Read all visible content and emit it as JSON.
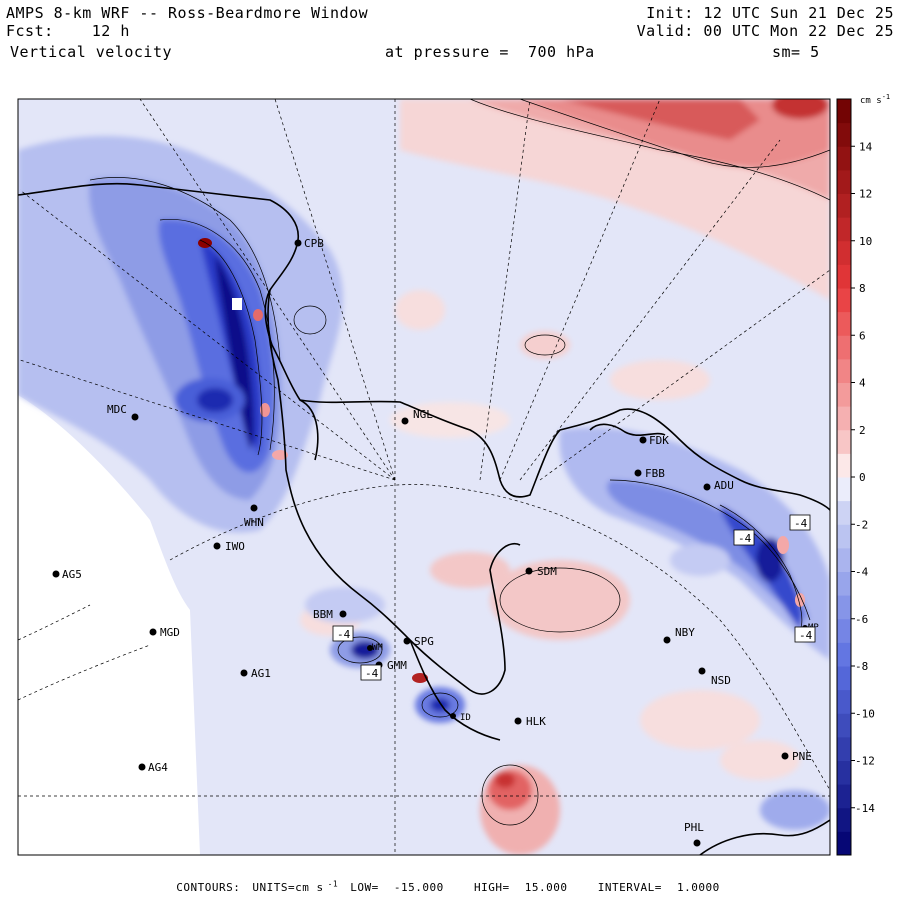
{
  "header": {
    "title": "AMPS 8-km WRF -- Ross-Beardmore Window",
    "forecast_label": "Fcst:",
    "forecast_hours": "12 h",
    "variable": "Vertical velocity",
    "init": "Init: 12 UTC Sun 21 Dec 25",
    "valid": "Valid: 00 UTC Mon 22 Dec 25",
    "pressure_label": "at pressure =",
    "pressure_value": "700 hPa",
    "smoothing": "sm= 5"
  },
  "colorbar": {
    "units_label": "cm s",
    "units_exponent": "-1",
    "tick_labels": [
      "14",
      "12",
      "10",
      "8",
      "6",
      "4",
      "2",
      "0",
      "-2",
      "-4",
      "-6",
      "-8",
      "-10",
      "-12",
      "-14"
    ],
    "colors": {
      "positive_strong": "#6b0000",
      "positive_mid": "#e8393b",
      "positive_weak": "#f9d1d1",
      "zero": "#ffffff",
      "negative_weak": "#d6dbf6",
      "negative_mid": "#5a6ee0",
      "negative_strong": "#00006e"
    }
  },
  "stations": [
    {
      "id": "CPB"
    },
    {
      "id": "NGL"
    },
    {
      "id": "MDC"
    },
    {
      "id": "FDK"
    },
    {
      "id": "FBB"
    },
    {
      "id": "ADU"
    },
    {
      "id": "WHN"
    },
    {
      "id": "IWO"
    },
    {
      "id": "AG5"
    },
    {
      "id": "SDM"
    },
    {
      "id": "BBM"
    },
    {
      "id": "MGD"
    },
    {
      "id": "NBY"
    },
    {
      "id": "SPG"
    },
    {
      "id": "AG1"
    },
    {
      "id": "GMM"
    },
    {
      "id": "NSD"
    },
    {
      "id": "HLK"
    },
    {
      "id": "AG4"
    },
    {
      "id": "PNE"
    },
    {
      "id": "PHL"
    },
    {
      "id": "WM"
    },
    {
      "id": "ID"
    },
    {
      "id": "MP"
    }
  ],
  "contour_labels": [
    "-4",
    "-4",
    "-4",
    "-4",
    "-4"
  ],
  "footer": {
    "contours_label": "CONTOURS:",
    "units_label": "UNITS=cm s",
    "units_exponent": "-1",
    "low_label": "LOW=",
    "low_value": "-15.000",
    "high_label": "HIGH=",
    "high_value": "15.000",
    "interval_label": "INTERVAL=",
    "interval_value": "1.0000"
  }
}
